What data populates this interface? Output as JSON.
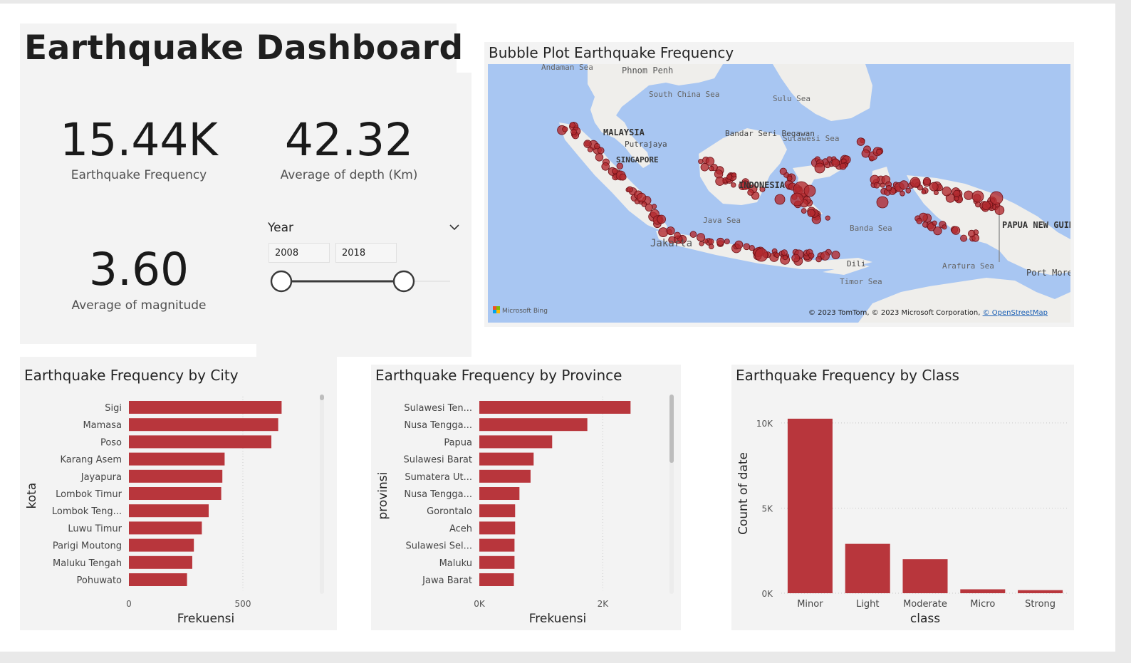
{
  "header": {
    "title": "Earthquake Dashboard"
  },
  "kpis": {
    "frequency": {
      "value": "15.44K",
      "label": "Earthquake Frequency"
    },
    "depth": {
      "value": "42.32",
      "label": "Average of depth (Km)"
    },
    "magnitude": {
      "value": "3.60",
      "label": "Average of magnitude"
    }
  },
  "slicer": {
    "title": "Year",
    "start": "2008",
    "end": "2018",
    "range": [
      2008,
      2018
    ]
  },
  "map": {
    "title": "Bubble Plot Earthquake Frequency",
    "labels": {
      "andaman": "Andaman Sea",
      "phnompenh": "Phnom Penh",
      "scs": "South China Sea",
      "sulu": "Sulu Sea",
      "malaysia": "MALAYSIA",
      "putrajaya": "Putrajaya",
      "singapore": "SINGAPORE",
      "bandar": "Bandar Seri Begawan",
      "sulawesisea": "Sulawesi Sea",
      "indonesia": "INDONESIA",
      "java": "Java Sea",
      "jakarta": "Jakarta",
      "banda": "Banda Sea",
      "dili": "Dili",
      "timor": "Timor Sea",
      "arafura": "Arafura Sea",
      "png": "PAPUA NEW GUINEA",
      "portmoresby": "Port Moresby"
    },
    "logo": "Microsoft Bing",
    "attribution": "© 2023 TomTom, © 2023 Microsoft Corporation, ",
    "attribution_link": "© OpenStreetMap",
    "colors": {
      "water": "#a8c6f2",
      "land": "#efeeeb",
      "bubble": "#b32a2f"
    }
  },
  "chart_data": [
    {
      "type": "bar",
      "orientation": "horizontal",
      "title": "Earthquake Frequency by City",
      "xlabel": "Frekuensi",
      "ylabel": "kota",
      "categories": [
        "Sigi",
        "Mamasa",
        "Poso",
        "Karang Asem",
        "Jayapura",
        "Lombok Timur",
        "Lombok Teng...",
        "Luwu Timur",
        "Parigi Moutong",
        "Maluku Tengah",
        "Pohuwato"
      ],
      "values": [
        670,
        655,
        625,
        420,
        410,
        405,
        350,
        320,
        285,
        278,
        255
      ],
      "xticks": [
        "0",
        "500"
      ],
      "xlim": [
        0,
        800
      ],
      "color": "#b8363c"
    },
    {
      "type": "bar",
      "orientation": "horizontal",
      "title": "Earthquake Frequency by Province",
      "xlabel": "Frekuensi",
      "ylabel": "provinsi",
      "categories": [
        "Sulawesi Ten...",
        "Nusa Tengga...",
        "Papua",
        "Sulawesi Barat",
        "Sumatera Ut...",
        "Nusa Tengga...",
        "Gorontalo",
        "Aceh",
        "Sulawesi Sel...",
        "Maluku",
        "Jawa Barat"
      ],
      "values": [
        2450,
        1750,
        1180,
        880,
        830,
        650,
        580,
        580,
        570,
        570,
        560
      ],
      "xticks": [
        "0K",
        "2K"
      ],
      "xlim": [
        0,
        3000
      ],
      "color": "#b8363c"
    },
    {
      "type": "bar",
      "title": "Earthquake Frequency by Class",
      "xlabel": "class",
      "ylabel": "Count of date",
      "categories": [
        "Minor",
        "Light",
        "Moderate",
        "Micro",
        "Strong"
      ],
      "values": [
        10250,
        2900,
        2000,
        230,
        180
      ],
      "yticks": [
        "0K",
        "5K",
        "10K"
      ],
      "ylim": [
        0,
        11000
      ],
      "grid": true,
      "color": "#b8363c"
    }
  ]
}
